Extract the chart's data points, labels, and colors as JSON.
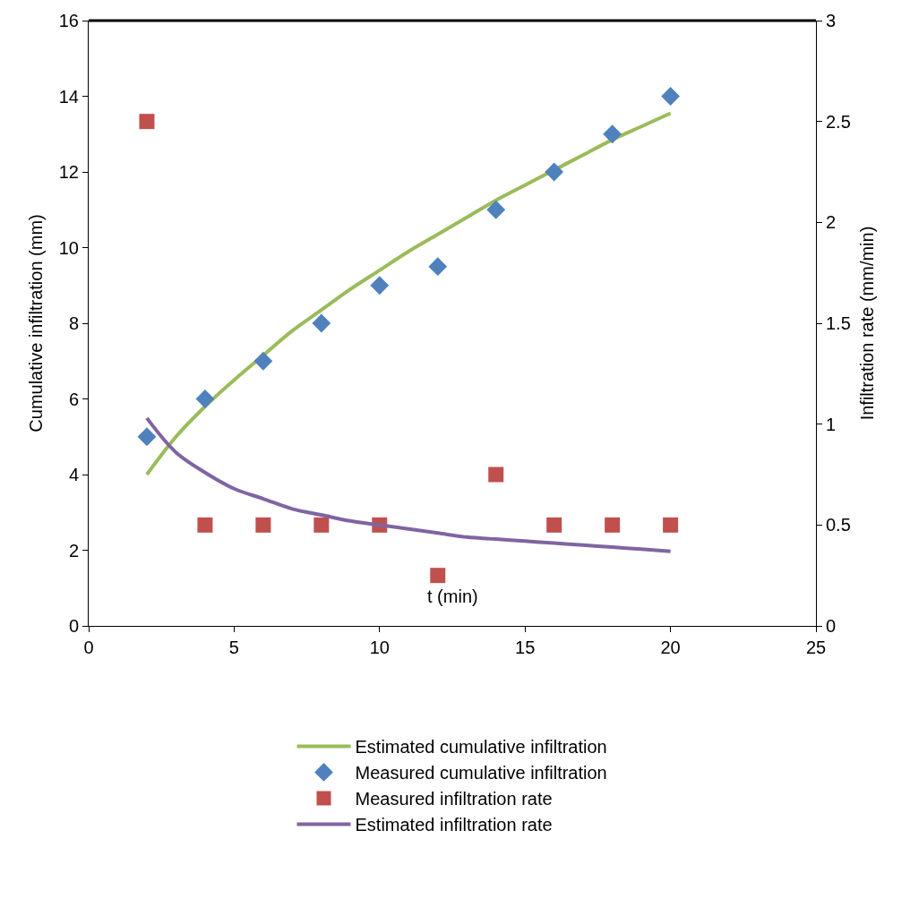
{
  "chart_data": {
    "type": "line",
    "xlabel": "t (min)",
    "ylabel": "Cumulative infiltration (mm)",
    "y2label": "Infiltration rate (mm/min)",
    "xlim": [
      0,
      25
    ],
    "xticks": [
      0,
      5,
      10,
      15,
      20,
      25
    ],
    "ylim": [
      0,
      16
    ],
    "yticks": [
      0,
      2,
      4,
      6,
      8,
      10,
      12,
      14,
      16
    ],
    "y2lim": [
      0,
      3
    ],
    "y2ticks": [
      0,
      0.5,
      1,
      1.5,
      2,
      2.5,
      3
    ],
    "legend": "bottom",
    "series": [
      {
        "name": "Estimated cumulative infiltration",
        "marker": "none",
        "line_style": "solid",
        "color": "#9bbb59",
        "x": [
          2,
          3,
          4,
          5,
          6,
          7,
          8,
          9,
          10,
          11,
          12,
          13,
          14,
          15,
          16,
          17,
          18,
          19,
          20
        ],
        "values": [
          4.0,
          5.0,
          5.8,
          6.5,
          7.15,
          7.8,
          8.35,
          8.9,
          9.4,
          9.9,
          10.35,
          10.8,
          11.25,
          11.65,
          12.05,
          12.45,
          12.85,
          13.2,
          13.55
        ]
      },
      {
        "name": "Measured cumulative infiltration",
        "type": "scatter",
        "marker": "diamond",
        "color": "#4f81bd",
        "x": [
          2,
          4,
          6,
          8,
          10,
          12,
          14,
          16,
          18,
          20
        ],
        "values": [
          5,
          6,
          7,
          8,
          9,
          9.5,
          11,
          12,
          13,
          14
        ]
      },
      {
        "name": "Measured infiltration rate",
        "type": "scatter",
        "marker": "square",
        "axis": "y2",
        "color": "#c0504d",
        "x": [
          2,
          4,
          6,
          8,
          10,
          12,
          14,
          16,
          18,
          20
        ],
        "values": [
          2.5,
          0.5,
          0.5,
          0.5,
          0.5,
          0.25,
          0.75,
          0.5,
          0.5,
          0.5
        ]
      },
      {
        "name": "Estimated infiltration rate",
        "marker": "none",
        "line_style": "solid",
        "axis": "y2",
        "color": "#8064a2",
        "x": [
          2,
          3,
          4,
          5,
          6,
          7,
          8,
          9,
          10,
          11,
          12,
          13,
          14,
          15,
          16,
          17,
          18,
          19,
          20
        ],
        "values": [
          1.03,
          0.86,
          0.76,
          0.68,
          0.63,
          0.58,
          0.55,
          0.52,
          0.5,
          0.48,
          0.46,
          0.44,
          0.43,
          0.42,
          0.41,
          0.4,
          0.39,
          0.38,
          0.37
        ]
      }
    ]
  }
}
